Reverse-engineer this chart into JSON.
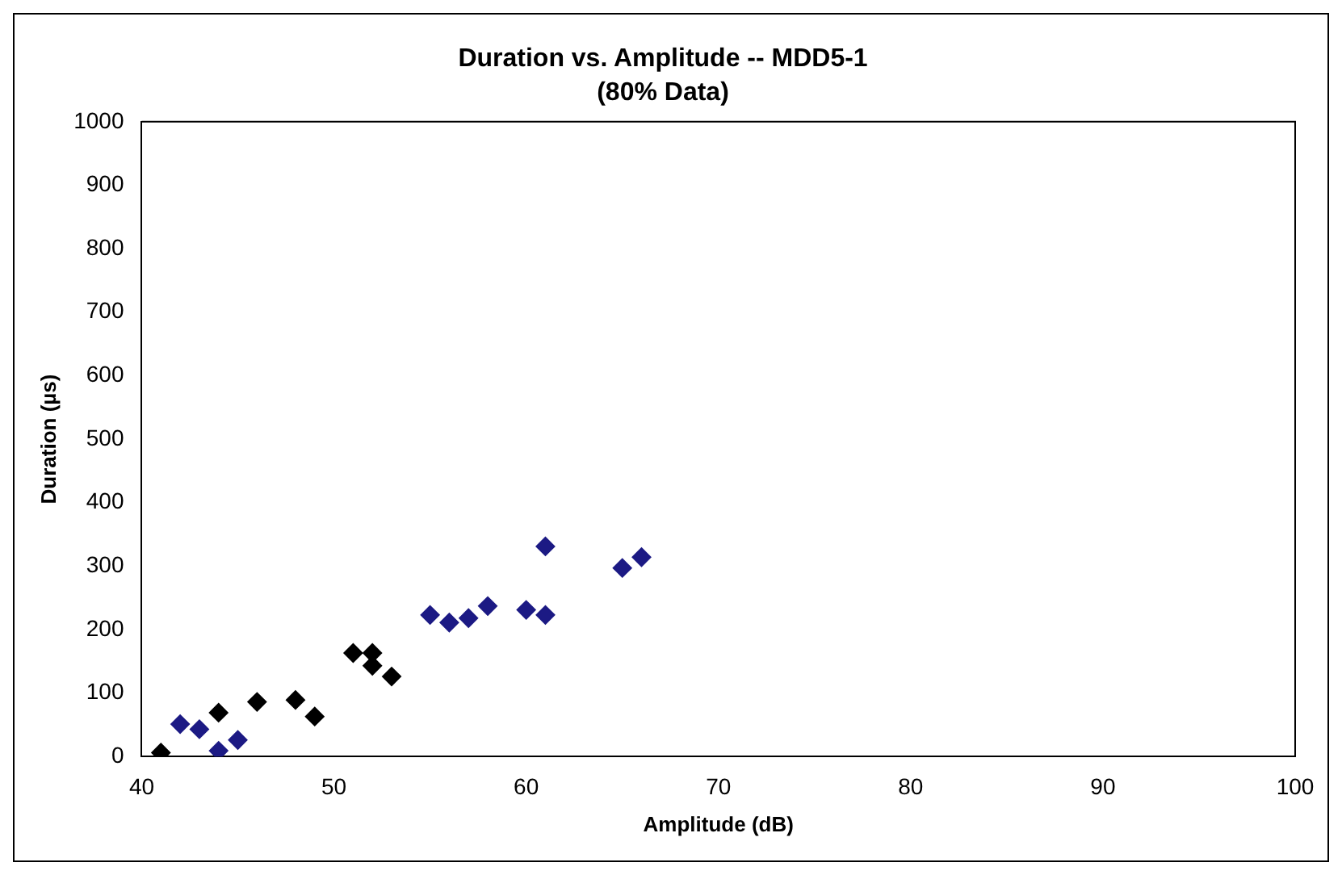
{
  "chart_data": {
    "type": "scatter",
    "title": "Duration vs. Amplitude -- MDD5-1",
    "subtitle": "(80% Data)",
    "xlabel": "Amplitude (dB)",
    "ylabel": "Duration (µs)",
    "series": [
      {
        "x": [
          41,
          44,
          46,
          48,
          49,
          51,
          52,
          52,
          53
        ],
        "values": [
          6,
          69,
          86,
          89,
          63,
          163,
          163,
          143,
          126
        ],
        "color": "#000000"
      },
      {
        "x": [
          42,
          43,
          44,
          45,
          55,
          56,
          57,
          58,
          60,
          61,
          61,
          65,
          66
        ],
        "values": [
          51,
          43,
          9,
          26,
          223,
          211,
          218,
          237,
          231,
          223,
          331,
          297,
          314
        ],
        "color": "#1c1a84"
      }
    ],
    "xlim": [
      40,
      100
    ],
    "xticks": [
      40,
      50,
      60,
      70,
      80,
      90,
      100
    ],
    "ylim": [
      0,
      1000
    ],
    "yticks": [
      0,
      100,
      200,
      300,
      400,
      500,
      600,
      700,
      800,
      900,
      1000
    ],
    "grid": false,
    "legend": false,
    "marker": "diamond"
  }
}
